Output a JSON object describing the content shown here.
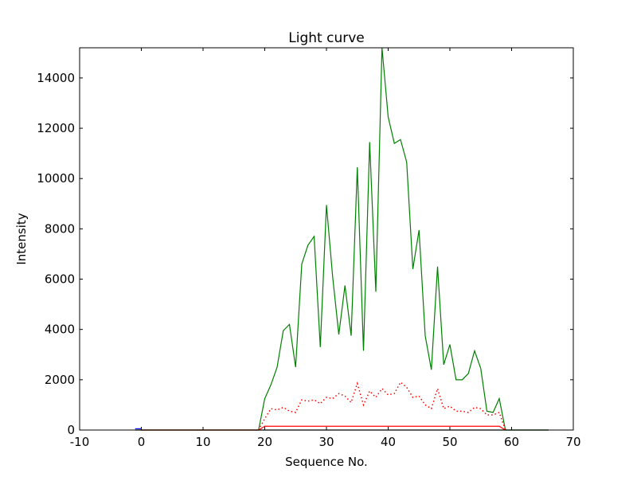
{
  "chart_data": {
    "type": "line",
    "title": "Light curve",
    "xlabel": "Sequence No.",
    "ylabel": "Intensity",
    "xlim": [
      -10,
      70
    ],
    "ylim": [
      0,
      15200
    ],
    "xticks": [
      -10,
      0,
      10,
      20,
      30,
      40,
      50,
      60,
      70
    ],
    "yticks": [
      0,
      2000,
      4000,
      6000,
      8000,
      10000,
      12000,
      14000
    ],
    "grid": false,
    "series": [
      {
        "name": "baseline",
        "color": "#000000",
        "style": "solid",
        "x": [
          -1,
          66
        ],
        "y": [
          0,
          0
        ]
      },
      {
        "name": "blue",
        "color": "#0000ff",
        "style": "solid",
        "x": [
          -1,
          0
        ],
        "y": [
          50,
          50
        ]
      },
      {
        "name": "green",
        "color": "#008000",
        "style": "solid",
        "x": [
          0,
          19,
          20,
          21,
          22,
          23,
          24,
          25,
          26,
          27,
          28,
          29,
          30,
          31,
          32,
          33,
          34,
          35,
          36,
          37,
          38,
          39,
          40,
          41,
          42,
          43,
          44,
          45,
          46,
          47,
          48,
          49,
          50,
          51,
          52,
          53,
          54,
          55,
          56,
          57,
          58,
          59,
          66
        ],
        "y": [
          0,
          0,
          1250,
          1800,
          2500,
          3950,
          4200,
          2500,
          6600,
          7350,
          7700,
          3300,
          8950,
          6100,
          3800,
          5750,
          3750,
          10450,
          3150,
          11450,
          5500,
          15200,
          12450,
          11400,
          11550,
          10650,
          6400,
          7950,
          3750,
          2400,
          6500,
          2600,
          3400,
          2000,
          2000,
          2250,
          3150,
          2450,
          750,
          700,
          1250,
          0,
          0
        ]
      },
      {
        "name": "red-dotted",
        "color": "#ff0000",
        "style": "dotted",
        "x": [
          19,
          20,
          21,
          22,
          23,
          24,
          25,
          26,
          27,
          28,
          29,
          30,
          31,
          32,
          33,
          34,
          35,
          36,
          37,
          38,
          39,
          40,
          41,
          42,
          43,
          44,
          45,
          46,
          47,
          48,
          49,
          50,
          51,
          52,
          53,
          54,
          55,
          56,
          57,
          58,
          59
        ],
        "y": [
          0,
          450,
          850,
          800,
          900,
          750,
          700,
          1200,
          1150,
          1200,
          1050,
          1300,
          1250,
          1450,
          1350,
          1100,
          1850,
          1000,
          1550,
          1300,
          1650,
          1400,
          1450,
          1900,
          1700,
          1300,
          1350,
          1000,
          850,
          1650,
          850,
          950,
          750,
          750,
          700,
          900,
          850,
          600,
          600,
          700,
          0
        ]
      },
      {
        "name": "red-solid",
        "color": "#ff0000",
        "style": "solid",
        "x": [
          0,
          19,
          20,
          58,
          59
        ],
        "y": [
          0,
          0,
          150,
          150,
          0
        ]
      }
    ]
  }
}
